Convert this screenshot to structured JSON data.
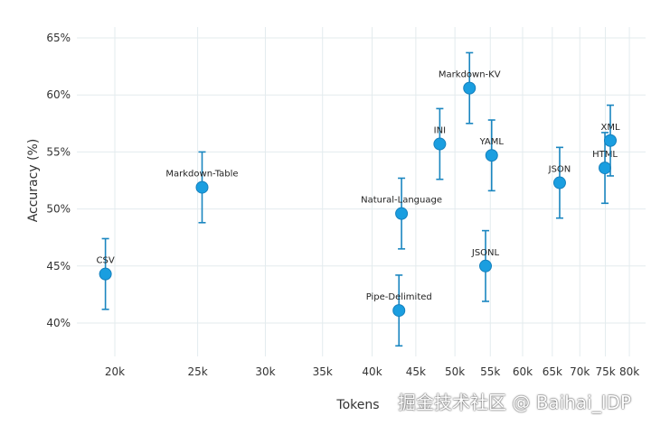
{
  "chart_data": {
    "type": "scatter",
    "title": "",
    "xlabel": "Tokens",
    "ylabel": "Accuracy (%)",
    "xscale": "log",
    "xlim": [
      18000,
      84000
    ],
    "ylim": [
      37,
      66
    ],
    "grid": true,
    "x_ticks": [
      20000,
      25000,
      30000,
      35000,
      40000,
      45000,
      50000,
      55000,
      60000,
      65000,
      70000,
      75000,
      80000
    ],
    "x_tick_labels": [
      "20k",
      "25k",
      "30k",
      "35k",
      "40k",
      "45k",
      "50k",
      "55k",
      "60k",
      "65k",
      "70k",
      "75k",
      "80k"
    ],
    "y_ticks": [
      40,
      45,
      50,
      55,
      60,
      65
    ],
    "y_tick_labels": [
      "40%",
      "45%",
      "50%",
      "55%",
      "60%",
      "65%"
    ],
    "marker_color": "#1a9ee0",
    "errorbar_color": "#1a86c0",
    "points": [
      {
        "name": "CSV",
        "x": 19500,
        "y": 44.3,
        "err": 3.1
      },
      {
        "name": "Markdown-Table",
        "x": 25300,
        "y": 51.9,
        "err": 3.1
      },
      {
        "name": "Natural-Language",
        "x": 43300,
        "y": 49.6,
        "err": 3.1
      },
      {
        "name": "Pipe-Delimited",
        "x": 43000,
        "y": 41.1,
        "err": 3.1
      },
      {
        "name": "INI",
        "x": 48000,
        "y": 55.7,
        "err": 3.1
      },
      {
        "name": "Markdown-KV",
        "x": 52000,
        "y": 60.6,
        "err": 3.1
      },
      {
        "name": "YAML",
        "x": 55200,
        "y": 54.7,
        "err": 3.1
      },
      {
        "name": "JSONL",
        "x": 54300,
        "y": 45.0,
        "err": 3.1
      },
      {
        "name": "JSON",
        "x": 66300,
        "y": 52.3,
        "err": 3.1
      },
      {
        "name": "HTML",
        "x": 74900,
        "y": 53.6,
        "err": 3.1
      },
      {
        "name": "XML",
        "x": 76000,
        "y": 56.0,
        "err": 3.1
      }
    ]
  },
  "watermark": "掘金技术社区 @ Baihai_IDP"
}
